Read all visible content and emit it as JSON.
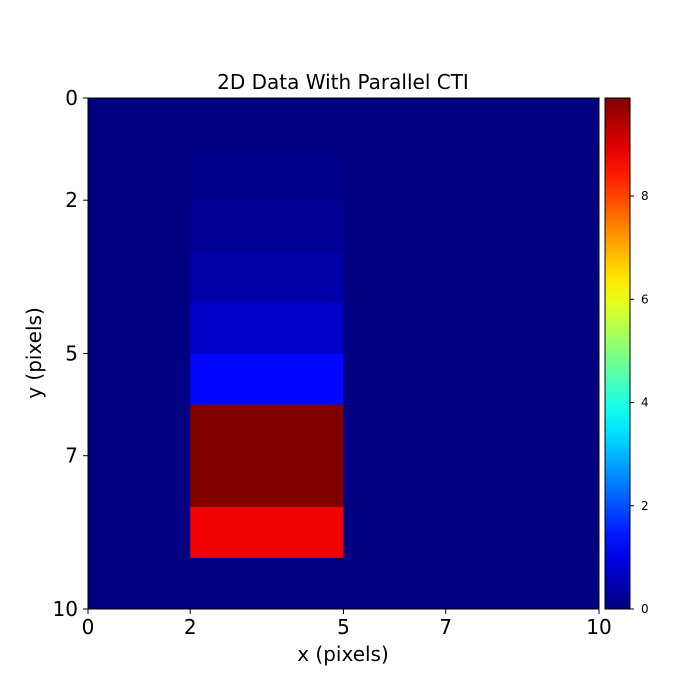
{
  "chart_data": {
    "type": "heatmap",
    "title": "2D Data With Parallel CTI",
    "xlabel": "x (pixels)",
    "ylabel": "y (pixels)",
    "xlim": [
      0,
      10
    ],
    "ylim": [
      10,
      0
    ],
    "y_inverted": true,
    "x_ticks": [
      0,
      2,
      5,
      7,
      10
    ],
    "y_ticks": [
      0,
      2,
      5,
      7,
      10
    ],
    "grid": false,
    "colormap": "jet",
    "colorbar": {
      "range": [
        0,
        9.9
      ],
      "ticks": [
        0,
        2,
        4,
        6,
        8
      ],
      "location": "right"
    },
    "cells": [
      {
        "x0": 2,
        "x1": 5,
        "y0": 1,
        "y1": 2,
        "value": 0.1
      },
      {
        "x0": 2,
        "x1": 5,
        "y0": 2,
        "y1": 3,
        "value": 0.2
      },
      {
        "x0": 2,
        "x1": 5,
        "y0": 3,
        "y1": 4,
        "value": 0.4
      },
      {
        "x0": 2,
        "x1": 5,
        "y0": 4,
        "y1": 5,
        "value": 0.7
      },
      {
        "x0": 2,
        "x1": 5,
        "y0": 5,
        "y1": 6,
        "value": 1.3
      },
      {
        "x0": 2,
        "x1": 5,
        "y0": 6,
        "y1": 8,
        "value": 9.9
      },
      {
        "x0": 2,
        "x1": 5,
        "y0": 8,
        "y1": 9,
        "value": 8.8
      }
    ],
    "background_value": 0
  }
}
